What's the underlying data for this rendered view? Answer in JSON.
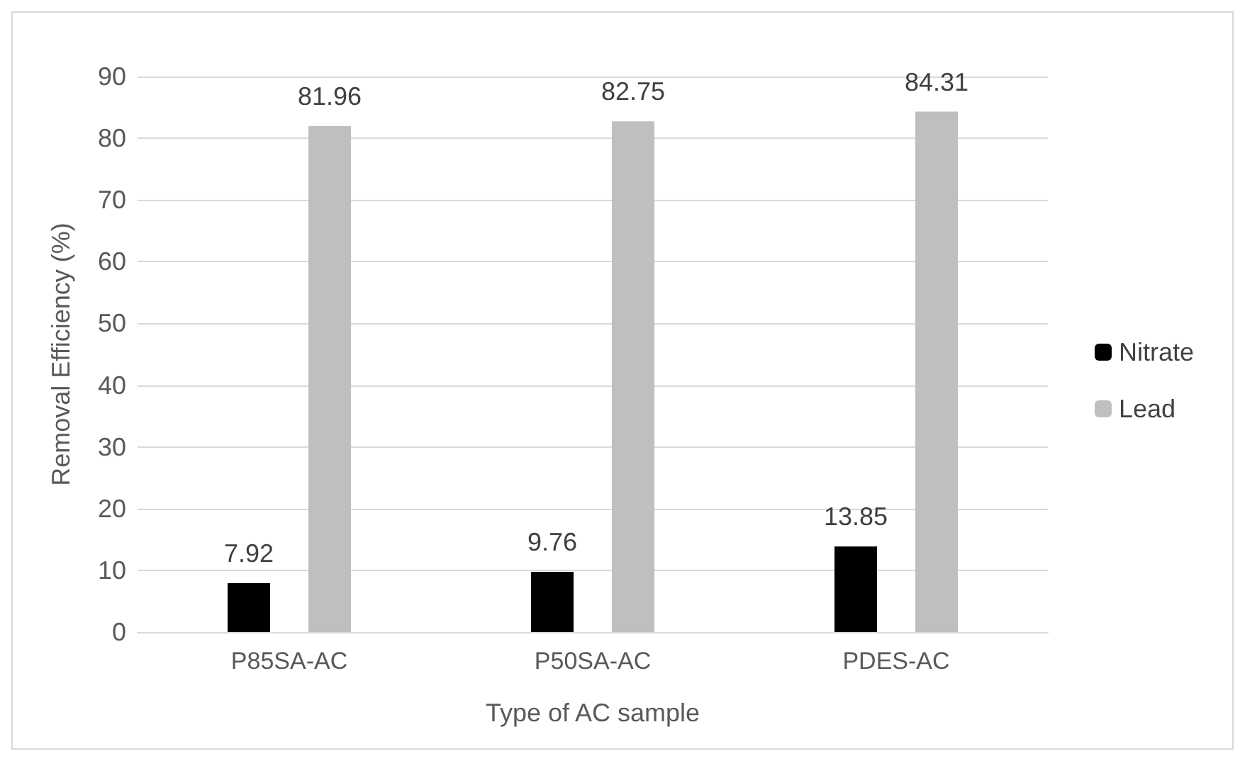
{
  "chart_data": {
    "type": "bar",
    "xlabel": "Type of AC sample",
    "ylabel": "Removal Efficiency (%)",
    "categories": [
      "P85SA-AC",
      "P50SA-AC",
      "PDES-AC"
    ],
    "series": [
      {
        "name": "Nitrate",
        "color": "#000000",
        "values": [
          7.92,
          9.76,
          13.85
        ]
      },
      {
        "name": "Lead",
        "color": "#bfbfbf",
        "values": [
          81.96,
          82.75,
          84.31
        ]
      }
    ],
    "ylim": [
      0,
      90
    ],
    "yticks": [
      0,
      10,
      20,
      30,
      40,
      50,
      60,
      70,
      80,
      90
    ],
    "grid": "y",
    "legend": "right",
    "data_labels": true
  }
}
